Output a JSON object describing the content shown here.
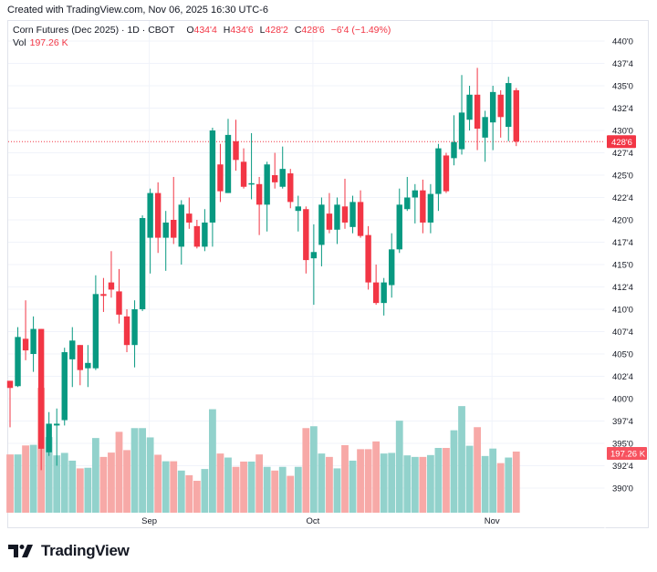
{
  "watermark": "Created with TradingView.com, Nov 06, 2025 16:30 UTC-6",
  "legend": {
    "symbol": "Corn Futures (Dec 2025) · 1D · CBOT",
    "open_label": "O",
    "open": "434'4",
    "high_label": "H",
    "high": "434'6",
    "low_label": "L",
    "low": "428'2",
    "close_label": "C",
    "close": "428'6",
    "change": "−6'4 (−1.49%)",
    "vol_label": "Vol",
    "vol": "197.26 K"
  },
  "logo_text": "TradingView",
  "colors": {
    "up": "#089981",
    "down": "#F23645",
    "vol_up": "#92d2cc",
    "vol_down": "#f7a9a7",
    "last_price_bg": "#F23645",
    "vol_badge_bg": "#f7525f"
  },
  "chart_data": {
    "type": "candlestick",
    "title": "",
    "x_ticks": [
      {
        "label": "Sep",
        "index": 18
      },
      {
        "label": "Oct",
        "index": 39
      },
      {
        "label": "Nov",
        "index": 62
      }
    ],
    "y_ticks": [
      "440'0",
      "437'4",
      "435'0",
      "432'4",
      "430'0",
      "427'4",
      "425'0",
      "422'4",
      "420'0",
      "417'4",
      "415'0",
      "412'4",
      "410'0",
      "407'4",
      "405'0",
      "402'4",
      "400'0",
      "397'4",
      "395'0",
      "392'4",
      "390'0"
    ],
    "y_tick_values": [
      440,
      437.5,
      435,
      432.5,
      430,
      427.5,
      425,
      422.5,
      420,
      417.5,
      415,
      412.5,
      410,
      407.5,
      405,
      402.5,
      400,
      397.5,
      395,
      392.5,
      390
    ],
    "ylim": [
      390,
      440
    ],
    "grid": true,
    "last_price": 428.75,
    "last_price_label": "428'6",
    "last_volume": 197.26,
    "last_volume_label": "197.26 K",
    "volume_unit": "K",
    "open": [
      402.0,
      401.4,
      406.7,
      405.0,
      407.8,
      394.0,
      397.0,
      397.6,
      404.4,
      406.0,
      403.4,
      403.4,
      411.7,
      413.0,
      412.0,
      409.2,
      406.0,
      410.0,
      418.0,
      423.0,
      418.0,
      420.0,
      417.0,
      420.7,
      419.3,
      417.0,
      419.7,
      426.2,
      423.0,
      428.8,
      426.5,
      424.0,
      424.0,
      421.7,
      425.0,
      423.7,
      425.2,
      421.0,
      421.2,
      415.7,
      417.2,
      420.7,
      418.9,
      421.5,
      419.2,
      422.0,
      418.3,
      413.0,
      410.7,
      412.7,
      416.7,
      421.2,
      422.5,
      423.3,
      419.7,
      422.9,
      427.2,
      426.9,
      427.9,
      431.2,
      434.0,
      429.2,
      430.9,
      434.0,
      430.4,
      434.5
    ],
    "high": [
      402.0,
      408.0,
      411.0,
      409.2,
      407.8,
      398.5,
      398.9,
      405.7,
      408.0,
      406.0,
      406.0,
      413.8,
      413.5,
      416.5,
      414.5,
      410.0,
      411.0,
      420.5,
      423.5,
      424.2,
      421.0,
      424.8,
      422.2,
      422.5,
      420.0,
      421.2,
      430.3,
      428.5,
      431.3,
      431.2,
      428.0,
      429.7,
      424.8,
      426.5,
      427.5,
      428.2,
      425.7,
      422.7,
      421.5,
      419.5,
      422.5,
      423.0,
      422.5,
      424.6,
      422.7,
      423.3,
      419.3,
      415.0,
      413.5,
      418.5,
      423.5,
      424.8,
      424.0,
      424.5,
      424.0,
      428.5,
      427.5,
      431.7,
      436.2,
      435.0,
      437.0,
      432.2,
      435.0,
      434.5,
      436.0,
      434.75
    ],
    "low": [
      396.8,
      401.3,
      404.3,
      403.0,
      392.0,
      393.6,
      392.5,
      397.0,
      401.3,
      401.5,
      401.3,
      403.2,
      409.7,
      411.3,
      408.4,
      405.2,
      403.5,
      409.8,
      414.0,
      416.3,
      414.3,
      417.3,
      415.0,
      419.0,
      416.8,
      416.5,
      417.0,
      422.0,
      423.0,
      425.5,
      423.5,
      422.3,
      418.3,
      418.7,
      423.5,
      423.5,
      421.3,
      418.7,
      414.0,
      410.5,
      414.8,
      418.5,
      417.3,
      419.0,
      418.5,
      418.0,
      412.2,
      410.5,
      409.3,
      411.3,
      416.3,
      421.0,
      419.6,
      418.5,
      418.5,
      421.0,
      423.0,
      426.1,
      427.3,
      430.0,
      427.8,
      426.5,
      427.8,
      429.2,
      428.8,
      428.25
    ],
    "close": [
      401.2,
      406.9,
      405.4,
      407.8,
      394.4,
      397.2,
      397.2,
      405.2,
      406.5,
      403.2,
      404.0,
      411.7,
      411.5,
      412.2,
      409.4,
      406.0,
      410.0,
      420.2,
      423.0,
      418.0,
      419.7,
      418.0,
      421.7,
      419.7,
      417.0,
      419.7,
      430.0,
      423.2,
      429.5,
      426.7,
      423.7,
      424.1,
      421.7,
      426.2,
      424.2,
      425.7,
      422.0,
      421.5,
      415.5,
      416.4,
      421.7,
      418.9,
      421.7,
      419.7,
      422.0,
      418.2,
      413.0,
      410.7,
      413.0,
      416.7,
      421.7,
      422.5,
      423.3,
      419.7,
      422.9,
      428.0,
      423.2,
      428.7,
      432.0,
      434.0,
      430.2,
      431.5,
      434.3,
      431.5,
      435.3,
      428.75
    ],
    "volume": [
      188,
      188,
      217,
      219,
      403,
      244,
      185,
      193,
      168,
      143,
      145,
      241,
      180,
      194,
      261,
      202,
      273,
      273,
      243,
      187,
      166,
      166,
      136,
      121,
      103,
      141,
      334,
      191,
      178,
      148,
      165,
      165,
      188,
      148,
      136,
      148,
      119,
      148,
      273,
      279,
      191,
      180,
      143,
      218,
      168,
      205,
      205,
      230,
      191,
      193,
      297,
      185,
      180,
      180,
      186,
      209,
      209,
      266,
      344,
      216,
      276,
      183,
      207,
      160,
      178,
      197.26
    ]
  }
}
